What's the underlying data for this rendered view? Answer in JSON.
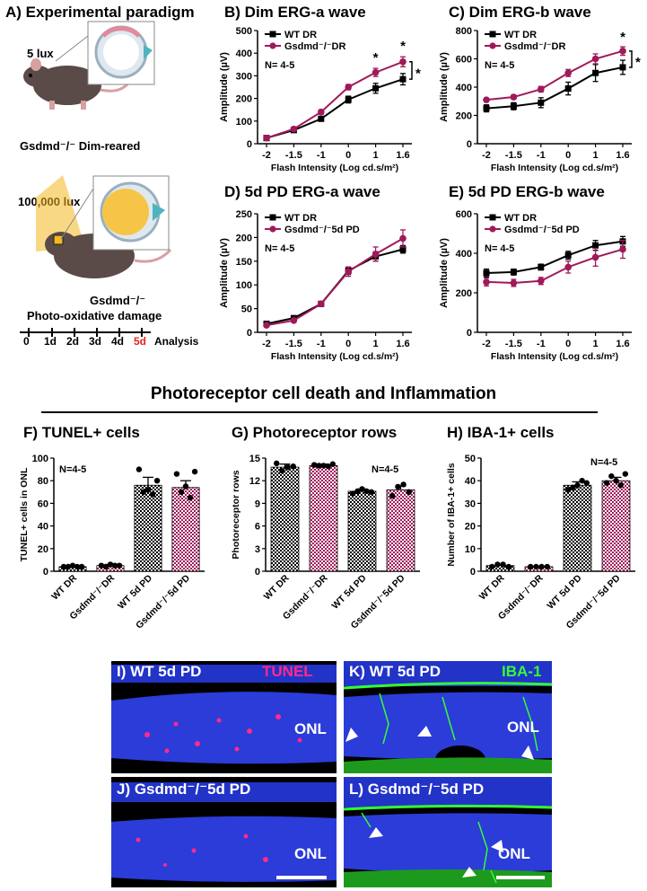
{
  "panelA": {
    "title": "A) Experimental paradigm",
    "dim_lux": "5 lux",
    "dim_label": "Gsdmd⁻/⁻ Dim-reared",
    "bright_lux": "100,000 lux",
    "pd_label_1": "Gsdmd⁻/⁻",
    "pd_label_2": "Photo-oxidative damage",
    "timeline": [
      "0",
      "1d",
      "2d",
      "3d",
      "4d",
      "5d"
    ],
    "timeline_end": "Analysis",
    "colors": {
      "highlight": "#e8221c",
      "mouse": "#5a4a48",
      "light": "#f3b81f"
    }
  },
  "section_title": "Photoreceptor cell death and Inflammation",
  "chart_data": [
    {
      "id": "B",
      "type": "line",
      "title": "B) Dim ERG-a wave",
      "xlabel": "Flash Intensity (Log cd.s/m²)",
      "ylabel": "Amplitude (µV)",
      "categories": [
        "-2",
        "-1.5",
        "-1",
        "0",
        "1",
        "1.6"
      ],
      "ylim": [
        0,
        500
      ],
      "yticks": [
        0,
        100,
        200,
        300,
        400,
        500
      ],
      "note": "N= 4-5",
      "series": [
        {
          "name": "WT DR",
          "color": "#000000",
          "values": [
            25,
            60,
            110,
            195,
            245,
            285
          ],
          "err": [
            5,
            6,
            10,
            15,
            22,
            25
          ]
        },
        {
          "name": "Gsdmd⁻/⁻DR",
          "color": "#a0195a",
          "values": [
            25,
            65,
            140,
            250,
            315,
            362
          ],
          "err": [
            5,
            6,
            10,
            12,
            18,
            22
          ]
        }
      ],
      "annotations": [
        "*",
        "*",
        "*"
      ]
    },
    {
      "id": "C",
      "type": "line",
      "title": "C) Dim ERG-b wave",
      "xlabel": "Flash Intensity (Log cd.s/m²)",
      "ylabel": "Amplitude (µV)",
      "categories": [
        "-2",
        "-1.5",
        "-1",
        "0",
        "1",
        "1.6"
      ],
      "ylim": [
        0,
        800
      ],
      "yticks": [
        0,
        200,
        400,
        600,
        800
      ],
      "note": "N= 4-5",
      "series": [
        {
          "name": "WT DR",
          "color": "#000000",
          "values": [
            250,
            265,
            290,
            390,
            500,
            540
          ],
          "err": [
            25,
            25,
            35,
            45,
            60,
            50
          ]
        },
        {
          "name": "Gsdmd⁻/⁻DR",
          "color": "#a0195a",
          "values": [
            310,
            330,
            385,
            500,
            600,
            655
          ],
          "err": [
            12,
            15,
            20,
            25,
            35,
            30
          ]
        }
      ],
      "annotations": [
        "*",
        "*"
      ]
    },
    {
      "id": "D",
      "type": "line",
      "title": "D) 5d PD ERG-a wave",
      "xlabel": "Flash Intensity (Log cd.s/m²)",
      "ylabel": "Amplitude (µV)",
      "categories": [
        "-2",
        "-1.5",
        "-1",
        "0",
        "1",
        "1.6"
      ],
      "ylim": [
        0,
        250
      ],
      "yticks": [
        0,
        50,
        100,
        150,
        200,
        250
      ],
      "note": "N= 4-5",
      "series": [
        {
          "name": "WT DR",
          "color": "#000000",
          "values": [
            18,
            30,
            60,
            130,
            160,
            175
          ],
          "err": [
            3,
            4,
            5,
            8,
            10,
            8
          ]
        },
        {
          "name": "Gsdmd⁻/⁻5d PD",
          "color": "#a0195a",
          "values": [
            15,
            25,
            60,
            128,
            165,
            198
          ],
          "err": [
            3,
            3,
            5,
            10,
            15,
            18
          ]
        }
      ],
      "annotations": []
    },
    {
      "id": "E",
      "type": "line",
      "title": "E) 5d PD ERG-b wave",
      "xlabel": "Flash Intensity (Log cd.s/m²)",
      "ylabel": "Amplitude (µV)",
      "categories": [
        "-2",
        "-1.5",
        "-1",
        "0",
        "1",
        "1.6"
      ],
      "ylim": [
        0,
        600
      ],
      "yticks": [
        0,
        200,
        400,
        600
      ],
      "note": "N= 4-5",
      "series": [
        {
          "name": "WT DR",
          "color": "#000000",
          "values": [
            300,
            305,
            330,
            390,
            440,
            460
          ],
          "err": [
            20,
            15,
            15,
            20,
            25,
            25
          ]
        },
        {
          "name": "Gsdmd⁻/⁻5d PD",
          "color": "#a0195a",
          "values": [
            255,
            250,
            260,
            330,
            380,
            420
          ],
          "err": [
            20,
            18,
            18,
            30,
            45,
            45
          ]
        }
      ],
      "annotations": []
    },
    {
      "id": "F",
      "type": "bar",
      "title": "F) TUNEL+ cells",
      "ylabel": "TUNEL+ cells in ONL",
      "categories": [
        "WT DR",
        "Gsdmd⁻/⁻DR",
        "WT 5d PD",
        "Gsdmd⁻/⁻5d PD"
      ],
      "values": [
        4,
        5,
        76,
        74
      ],
      "err": [
        0.5,
        1,
        7,
        6
      ],
      "points": [
        [
          4,
          4,
          5,
          4,
          4
        ],
        [
          5,
          4,
          6,
          5,
          5
        ],
        [
          90,
          70,
          72,
          68,
          80
        ],
        [
          86,
          70,
          75,
          65,
          88
        ]
      ],
      "ylim": [
        0,
        100
      ],
      "yticks": [
        0,
        20,
        40,
        60,
        80,
        100
      ],
      "note": "N=4-5",
      "bar_colors": [
        "#000000",
        "#a0195a",
        "#000000",
        "#a0195a"
      ]
    },
    {
      "id": "G",
      "type": "bar",
      "title": "G) Photoreceptor rows",
      "ylabel": "Photoreceptor rows",
      "categories": [
        "WT DR",
        "Gsdmd⁻/⁻DR",
        "WT 5d PD",
        "Gsdmd⁻/⁻5d PD"
      ],
      "values": [
        13.8,
        14.0,
        10.6,
        10.8
      ],
      "err": [
        0.4,
        0.2,
        0.3,
        0.5
      ],
      "points": [
        [
          14.3,
          13.3,
          13.8,
          13.9
        ],
        [
          14.1,
          14.0,
          14.0,
          13.9,
          14.2
        ],
        [
          10.3,
          10.6,
          10.9,
          10.6,
          10.5
        ],
        [
          10.0,
          11.2,
          11.5,
          10.5
        ]
      ],
      "ylim": [
        0,
        15
      ],
      "yticks": [
        0,
        3,
        6,
        9,
        12,
        15
      ],
      "note": "N=4-5",
      "bar_colors": [
        "#000000",
        "#a0195a",
        "#000000",
        "#a0195a"
      ]
    },
    {
      "id": "H",
      "type": "bar",
      "title": "H) IBA-1+ cells",
      "ylabel": "Number of IBA-1+ cells",
      "categories": [
        "WT DR",
        "Gsdmd⁻/⁻DR",
        "WT 5d PD",
        "Gsdmd⁻/⁻5d PD"
      ],
      "values": [
        2.5,
        2.0,
        38,
        40
      ],
      "err": [
        0.5,
        0.3,
        1.5,
        1.5
      ],
      "points": [
        [
          2,
          3,
          3,
          2
        ],
        [
          2,
          2,
          2,
          2
        ],
        [
          36,
          37,
          38,
          40,
          39
        ],
        [
          39,
          42,
          40,
          38,
          43
        ]
      ],
      "ylim": [
        0,
        50
      ],
      "yticks": [
        0,
        10,
        20,
        30,
        40,
        50
      ],
      "note": "N=4-5",
      "bar_colors": [
        "#000000",
        "#a0195a",
        "#000000",
        "#a0195a"
      ]
    }
  ],
  "micrographs": {
    "I": {
      "title": "I) WT 5d PD",
      "stain": "TUNEL",
      "layer": "ONL"
    },
    "J": {
      "title": "J) Gsdmd⁻/⁻5d PD",
      "layer": "ONL"
    },
    "K": {
      "title": "K) WT 5d PD",
      "stain": "IBA-1",
      "layer": "ONL"
    },
    "L": {
      "title": "L) Gsdmd⁻/⁻5d PD",
      "layer": "ONL"
    },
    "colors": {
      "nuclei": "#2b3cd8",
      "tunel": "#ff2a8a",
      "iba1": "#33ff33",
      "background": "#000000"
    }
  }
}
